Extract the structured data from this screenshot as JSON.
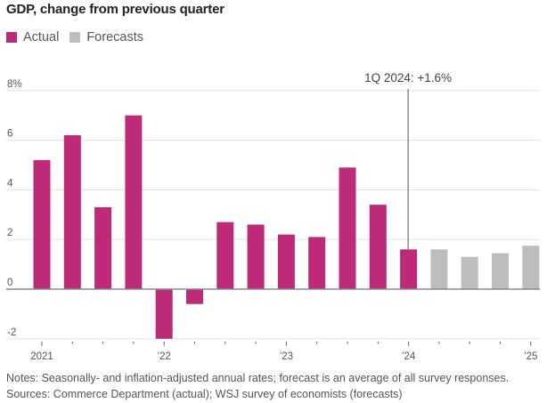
{
  "chart_data": {
    "type": "bar",
    "title": "GDP, change from previous quarter",
    "xlabel": "",
    "ylabel": "",
    "ylim": [
      -2,
      8
    ],
    "yticks": [
      {
        "value": 8,
        "label": "8%"
      },
      {
        "value": 6,
        "label": "6"
      },
      {
        "value": 4,
        "label": "4"
      },
      {
        "value": 2,
        "label": "2"
      },
      {
        "value": 0,
        "label": "0"
      },
      {
        "value": -2,
        "label": "-2"
      }
    ],
    "grid": true,
    "legend_position": "top-left",
    "legend": [
      {
        "name": "Actual",
        "color": "#BC2A78"
      },
      {
        "name": "Forecasts",
        "color": "#BDBDBD"
      }
    ],
    "categories": [
      "1Q 2021",
      "2Q 2021",
      "3Q 2021",
      "4Q 2021",
      "1Q 2022",
      "2Q 2022",
      "3Q 2022",
      "4Q 2022",
      "1Q 2023",
      "2Q 2023",
      "3Q 2023",
      "4Q 2023",
      "1Q 2024",
      "2Q 2024",
      "3Q 2024",
      "4Q 2024",
      "1Q 2025"
    ],
    "series": [
      {
        "name": "Actual",
        "color": "#BC2A78",
        "values": [
          5.2,
          6.2,
          3.3,
          7.0,
          -2.0,
          -0.6,
          2.7,
          2.6,
          2.2,
          2.1,
          4.9,
          3.4,
          1.6,
          null,
          null,
          null,
          null
        ]
      },
      {
        "name": "Forecasts",
        "color": "#BDBDBD",
        "values": [
          null,
          null,
          null,
          null,
          null,
          null,
          null,
          null,
          null,
          null,
          null,
          null,
          null,
          1.6,
          1.3,
          1.45,
          1.75
        ]
      }
    ],
    "xticks": [
      {
        "index": 0,
        "label": "2021"
      },
      {
        "index": 4,
        "label": "’22"
      },
      {
        "index": 8,
        "label": "’23"
      },
      {
        "index": 12,
        "label": "’24"
      },
      {
        "index": 16,
        "label": "’25"
      }
    ],
    "annotation": {
      "index": 12,
      "text": "1Q 2024: +1.6%"
    }
  },
  "notes": "Notes: Seasonally- and inflation-adjusted annual rates; forecast is an average of all survey responses.",
  "sources": "Sources: Commerce Department (actual); WSJ survey of economists (forecasts)"
}
